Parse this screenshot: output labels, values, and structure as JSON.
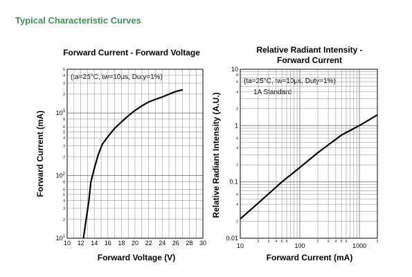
{
  "header": {
    "title": "Typical Characteristic Curves"
  },
  "chart_data": [
    {
      "type": "line",
      "title": "Forward Current - Forward Voltage",
      "xlabel": "Forward Voltage (V)",
      "ylabel": "Forward Current (mA)",
      "xlim": [
        10,
        30
      ],
      "ylim": [
        10,
        5000
      ],
      "y_scale": "log",
      "grid": true,
      "x_ticks": [
        "10",
        "12",
        "14",
        "16",
        "18",
        "20",
        "22",
        "24",
        "26",
        "28",
        "30"
      ],
      "y_major_ticks": [
        {
          "value": 10,
          "base": "10",
          "exp": "1"
        },
        {
          "value": 100,
          "base": "10",
          "exp": "2"
        },
        {
          "value": 1000,
          "base": "10",
          "exp": "3"
        }
      ],
      "y_minor_ticks": [
        {
          "value": 20,
          "label": "2"
        },
        {
          "value": 30,
          "label": "3"
        },
        {
          "value": 40,
          "label": "4"
        },
        {
          "value": 50,
          "label": "5"
        },
        {
          "value": 60,
          "label": "6"
        },
        {
          "value": 80,
          "label": "8"
        },
        {
          "value": 200,
          "label": "2"
        },
        {
          "value": 300,
          "label": "3"
        },
        {
          "value": 400,
          "label": "4"
        },
        {
          "value": 500,
          "label": "5"
        },
        {
          "value": 600,
          "label": "6"
        },
        {
          "value": 800,
          "label": "8"
        },
        {
          "value": 2000,
          "label": "2"
        },
        {
          "value": 3000,
          "label": "3"
        },
        {
          "value": 4000,
          "label": "4"
        },
        {
          "value": 5000,
          "label": "5"
        }
      ],
      "annotations": [
        "(ta=25°C, tw=10μs, Duty=1%)"
      ],
      "series": [
        {
          "x": [
            12.4,
            12.8,
            13.2,
            13.5,
            14.0,
            14.6,
            15.2,
            16.0,
            17.0,
            18.0,
            19.0,
            20.0,
            21.0,
            22.0,
            23.0,
            24.0,
            25.0,
            26.0,
            27.0
          ],
          "y": [
            10,
            20,
            40,
            80,
            130,
            220,
            320,
            420,
            570,
            720,
            900,
            1100,
            1300,
            1500,
            1650,
            1800,
            2000,
            2200,
            2350
          ]
        }
      ]
    },
    {
      "type": "line",
      "title": "Relative Radiant Intensity - Forward Current",
      "xlabel": "Forward Current (mA)",
      "ylabel": "Relative Radiant Intensity (A.U.)",
      "xlim": [
        10,
        2000
      ],
      "ylim": [
        0.01,
        10
      ],
      "x_scale": "log",
      "y_scale": "log",
      "grid": true,
      "x_major_ticks": [
        {
          "value": 10,
          "label": "10"
        },
        {
          "value": 100,
          "label": "100"
        },
        {
          "value": 1000,
          "label": "1000"
        }
      ],
      "x_minor_ticks": [
        {
          "value": 20,
          "label": "2"
        },
        {
          "value": 30,
          "label": "3"
        },
        {
          "value": 40,
          "label": "4"
        },
        {
          "value": 50,
          "label": "5"
        },
        {
          "value": 60,
          "label": "6"
        },
        {
          "value": 200,
          "label": "2"
        },
        {
          "value": 300,
          "label": "3"
        },
        {
          "value": 400,
          "label": "4"
        },
        {
          "value": 500,
          "label": "5"
        },
        {
          "value": 600,
          "label": "6"
        },
        {
          "value": 2000,
          "label": "2"
        }
      ],
      "y_major_ticks": [
        {
          "value": 0.01,
          "label": "0.01"
        },
        {
          "value": 0.1,
          "label": "0.1"
        },
        {
          "value": 1,
          "label": "1"
        },
        {
          "value": 10,
          "label": "10"
        }
      ],
      "y_minor_ticks": [
        {
          "value": 0.02,
          "label": "2"
        },
        {
          "value": 0.04,
          "label": "4"
        },
        {
          "value": 0.06,
          "label": "6"
        },
        {
          "value": 0.2,
          "label": "2"
        },
        {
          "value": 0.4,
          "label": "4"
        },
        {
          "value": 0.6,
          "label": "6"
        },
        {
          "value": 2,
          "label": "2"
        },
        {
          "value": 4,
          "label": "4"
        },
        {
          "value": 6,
          "label": "6"
        },
        {
          "value": 8,
          "label": "8"
        }
      ],
      "annotations": [
        "(ta=25°C, tw=10μs, Duty=1%)",
        "1A Standard"
      ],
      "series": [
        {
          "x": [
            10,
            20,
            50,
            100,
            200,
            500,
            1000,
            2000
          ],
          "y": [
            0.022,
            0.042,
            0.1,
            0.18,
            0.33,
            0.68,
            1.0,
            1.55
          ]
        }
      ]
    }
  ]
}
